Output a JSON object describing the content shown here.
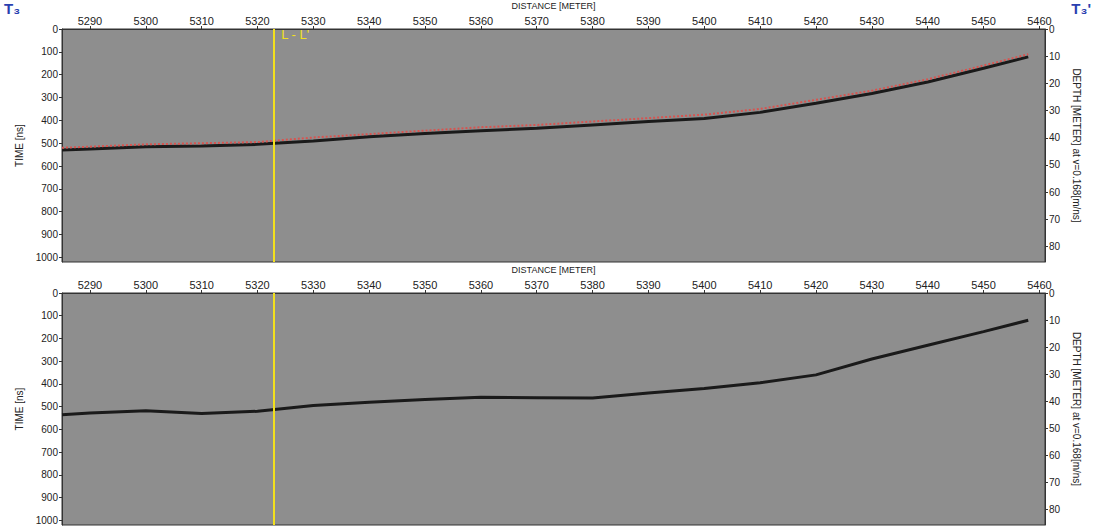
{
  "header": {
    "left": "T₃",
    "right": "T₃'"
  },
  "chart_data": [
    {
      "type": "line",
      "x_label": "DISTANCE [METER]",
      "y_label": "TIME [ns]",
      "y2_label": "DEPTH [METER] at v=0.168[m/ns]",
      "xlim": [
        5285,
        5461
      ],
      "xticks": [
        5290,
        5300,
        5310,
        5320,
        5330,
        5340,
        5350,
        5360,
        5370,
        5380,
        5390,
        5400,
        5410,
        5420,
        5430,
        5440,
        5450,
        5460
      ],
      "ylim": [
        0,
        1020
      ],
      "yticks": [
        0,
        100,
        200,
        300,
        400,
        500,
        600,
        700,
        800,
        900,
        1000
      ],
      "y2lim": [
        0,
        85.7
      ],
      "y2ticks": [
        0,
        10,
        20,
        30,
        40,
        50,
        60,
        70,
        80
      ],
      "series": [
        {
          "color": "#1a1a1a",
          "line_style": "solid",
          "x": [
            5285,
            5290,
            5300,
            5310,
            5320,
            5330,
            5340,
            5350,
            5360,
            5370,
            5380,
            5390,
            5400,
            5410,
            5420,
            5430,
            5440,
            5450,
            5458
          ],
          "values": [
            530,
            525,
            515,
            512,
            505,
            490,
            472,
            458,
            445,
            435,
            420,
            405,
            392,
            365,
            325,
            282,
            232,
            172,
            122
          ]
        },
        {
          "color": "#d9534f",
          "line_style": "dotted",
          "x": [
            5285,
            5290,
            5300,
            5310,
            5320,
            5330,
            5340,
            5350,
            5360,
            5370,
            5380,
            5390,
            5400,
            5410,
            5420,
            5430,
            5440,
            5450,
            5458
          ],
          "values": [
            520,
            515,
            505,
            500,
            495,
            475,
            460,
            445,
            430,
            420,
            405,
            390,
            375,
            350,
            310,
            270,
            220,
            160,
            110
          ]
        }
      ],
      "annotations": [
        {
          "x": 5323,
          "label": "L - L'",
          "color": "#f2e01e"
        }
      ]
    },
    {
      "type": "line",
      "x_label": "DISTANCE [METER]",
      "y_label": "TIME [ns]",
      "y2_label": "DEPTH [METER] at v=0.168[m/ns]",
      "xlim": [
        5285,
        5461
      ],
      "xticks": [
        5290,
        5300,
        5310,
        5320,
        5330,
        5340,
        5350,
        5360,
        5370,
        5380,
        5390,
        5400,
        5410,
        5420,
        5430,
        5440,
        5450,
        5460
      ],
      "ylim": [
        0,
        1020
      ],
      "yticks": [
        0,
        100,
        200,
        300,
        400,
        500,
        600,
        700,
        800,
        900,
        1000
      ],
      "y2lim": [
        0,
        85.7
      ],
      "y2ticks": [
        0,
        10,
        20,
        30,
        40,
        50,
        60,
        70,
        80
      ],
      "series": [
        {
          "color": "#1a1a1a",
          "line_style": "solid",
          "x": [
            5285,
            5290,
            5300,
            5310,
            5320,
            5330,
            5340,
            5350,
            5360,
            5370,
            5380,
            5390,
            5400,
            5410,
            5420,
            5430,
            5440,
            5450,
            5458
          ],
          "values": [
            535,
            528,
            518,
            530,
            520,
            495,
            480,
            468,
            458,
            460,
            462,
            440,
            420,
            395,
            360,
            290,
            230,
            170,
            120
          ]
        }
      ],
      "annotations": [
        {
          "x": 5323,
          "color": "#f2e01e"
        }
      ]
    }
  ]
}
